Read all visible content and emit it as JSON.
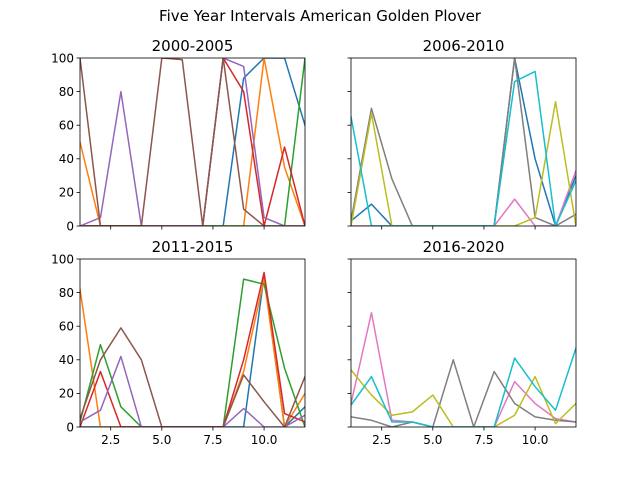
{
  "figure": {
    "suptitle": "Five Year Intervals American Golden Plover"
  },
  "colors": {
    "blue": "#1f77b4",
    "orange": "#ff7f0e",
    "green": "#2ca02c",
    "red": "#d62728",
    "purple": "#9467bd",
    "brown": "#8c564b",
    "pink": "#e377c2",
    "gray": "#7f7f7f",
    "olive": "#bcbd22",
    "cyan": "#17becf"
  },
  "chart_data": [
    {
      "type": "line",
      "title": "2000-2005",
      "xlim": [
        1,
        12
      ],
      "ylim": [
        0,
        100
      ],
      "x": [
        1,
        2,
        3,
        4,
        5,
        6,
        7,
        8,
        9,
        10,
        11,
        12
      ],
      "xticks": [
        "2.5",
        "5.0",
        "7.5",
        "10.0"
      ],
      "yticks": [
        "0",
        "20",
        "40",
        "60",
        "80",
        "100"
      ],
      "show_yticklabels": true,
      "show_xticklabels": false,
      "series": [
        {
          "color": "blue",
          "values": [
            0,
            0,
            0,
            0,
            0,
            0,
            0,
            0,
            88,
            100,
            100,
            60
          ]
        },
        {
          "color": "orange",
          "values": [
            50,
            0,
            0,
            0,
            0,
            0,
            0,
            0,
            0,
            100,
            35,
            0
          ]
        },
        {
          "color": "green",
          "values": [
            0,
            0,
            0,
            0,
            0,
            0,
            0,
            0,
            0,
            0,
            0,
            100
          ]
        },
        {
          "color": "red",
          "values": [
            0,
            0,
            0,
            0,
            0,
            0,
            0,
            100,
            80,
            0,
            47,
            0
          ]
        },
        {
          "color": "purple",
          "values": [
            0,
            5,
            80,
            0,
            0,
            0,
            0,
            100,
            95,
            5,
            0,
            0
          ]
        },
        {
          "color": "brown",
          "values": [
            100,
            0,
            0,
            0,
            100,
            99,
            0,
            100,
            10,
            0,
            0,
            0
          ]
        }
      ]
    },
    {
      "type": "line",
      "title": "2006-2010",
      "xlim": [
        1,
        12
      ],
      "ylim": [
        0,
        100
      ],
      "x": [
        1,
        2,
        3,
        4,
        5,
        6,
        7,
        8,
        9,
        10,
        11,
        12
      ],
      "xticks": [
        "2.5",
        "5.0",
        "7.5",
        "10.0"
      ],
      "yticks": [
        "0",
        "20",
        "40",
        "60",
        "80",
        "100"
      ],
      "show_yticklabels": false,
      "show_xticklabels": false,
      "series": [
        {
          "color": "blue",
          "values": [
            3,
            13,
            0,
            0,
            0,
            0,
            0,
            0,
            100,
            40,
            0,
            30
          ]
        },
        {
          "color": "pink",
          "values": [
            0,
            0,
            0,
            0,
            0,
            0,
            0,
            0,
            16,
            0,
            0,
            33
          ]
        },
        {
          "color": "gray",
          "values": [
            3,
            70,
            28,
            0,
            0,
            0,
            0,
            0,
            100,
            5,
            0,
            7
          ]
        },
        {
          "color": "olive",
          "values": [
            0,
            67,
            0,
            0,
            0,
            0,
            0,
            0,
            0,
            5,
            74,
            0
          ]
        },
        {
          "color": "cyan",
          "values": [
            65,
            0,
            0,
            0,
            0,
            0,
            0,
            0,
            86,
            92,
            0,
            27
          ]
        }
      ]
    },
    {
      "type": "line",
      "title": "2011-2015",
      "xlim": [
        1,
        12
      ],
      "ylim": [
        0,
        100
      ],
      "x": [
        1,
        2,
        3,
        4,
        5,
        6,
        7,
        8,
        9,
        10,
        11,
        12
      ],
      "xticks": [
        "2.5",
        "5.0",
        "7.5",
        "10.0"
      ],
      "yticks": [
        "0",
        "20",
        "40",
        "60",
        "80",
        "100"
      ],
      "show_yticklabels": true,
      "show_xticklabels": true,
      "series": [
        {
          "color": "blue",
          "values": [
            0,
            0,
            0,
            0,
            0,
            0,
            0,
            0,
            0,
            90,
            0,
            12
          ]
        },
        {
          "color": "orange",
          "values": [
            82,
            0,
            0,
            0,
            0,
            0,
            0,
            0,
            33,
            88,
            0,
            20
          ]
        },
        {
          "color": "green",
          "values": [
            3,
            49,
            12,
            0,
            0,
            0,
            0,
            0,
            88,
            85,
            35,
            0
          ]
        },
        {
          "color": "red",
          "values": [
            0,
            33,
            0,
            0,
            0,
            0,
            0,
            0,
            40,
            92,
            8,
            3
          ]
        },
        {
          "color": "purple",
          "values": [
            3,
            10,
            42,
            0,
            0,
            0,
            0,
            0,
            11,
            0,
            0,
            7
          ]
        },
        {
          "color": "brown",
          "values": [
            5,
            40,
            59,
            40,
            0,
            0,
            0,
            0,
            31,
            15,
            0,
            30
          ]
        }
      ]
    },
    {
      "type": "line",
      "title": "2016-2020",
      "xlim": [
        1,
        12
      ],
      "ylim": [
        0,
        100
      ],
      "x": [
        1,
        2,
        3,
        4,
        5,
        6,
        7,
        8,
        9,
        10,
        11,
        12
      ],
      "xticks": [
        "2.5",
        "5.0",
        "7.5",
        "10.0"
      ],
      "yticks": [
        "0",
        "20",
        "40",
        "60",
        "80",
        "100"
      ],
      "show_yticklabels": false,
      "show_xticklabels": true,
      "series": [
        {
          "color": "pink",
          "values": [
            14,
            68,
            4,
            3,
            0,
            0,
            0,
            0,
            27,
            14,
            5,
            3
          ]
        },
        {
          "color": "gray",
          "values": [
            6,
            4,
            0,
            3,
            0,
            40,
            0,
            33,
            14,
            6,
            4,
            3
          ]
        },
        {
          "color": "olive",
          "values": [
            34,
            19,
            7,
            9,
            19,
            0,
            0,
            0,
            7,
            30,
            2,
            14
          ]
        },
        {
          "color": "cyan",
          "values": [
            13,
            30,
            3,
            3,
            0,
            0,
            0,
            0,
            41,
            24,
            10,
            47
          ]
        }
      ]
    }
  ]
}
